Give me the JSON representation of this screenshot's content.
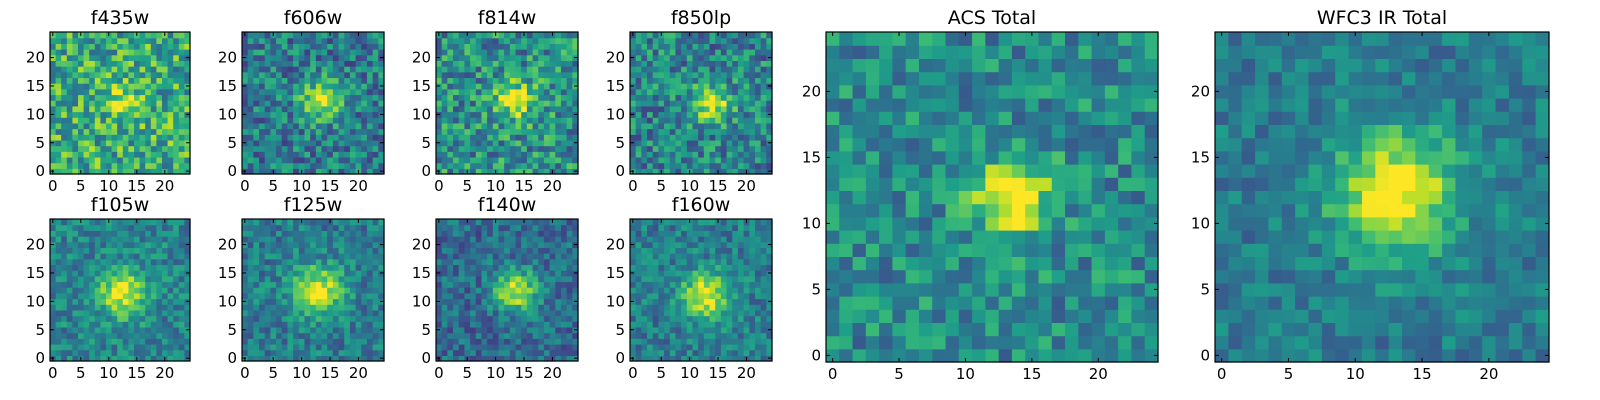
{
  "chart_data": {
    "type": "heatmap",
    "colormap": "viridis",
    "panels": [
      {
        "id": "f435w",
        "title": "f435w",
        "grid": 25,
        "xlim": [
          0,
          24
        ],
        "ylim": [
          0,
          24
        ],
        "xticks": [
          0,
          5,
          10,
          15,
          20
        ],
        "yticks": [
          0,
          5,
          10,
          15,
          20
        ],
        "peak": [
          12.5,
          12.5
        ],
        "sigma": 2.2,
        "amp": 0.3,
        "bg": 0.62,
        "noise": 0.28,
        "seed": 11
      },
      {
        "id": "f606w",
        "title": "f606w",
        "grid": 25,
        "xlim": [
          0,
          24
        ],
        "ylim": [
          0,
          24
        ],
        "xticks": [
          0,
          5,
          10,
          15,
          20
        ],
        "yticks": [
          0,
          5,
          10,
          15,
          20
        ],
        "peak": [
          13.5,
          12.5
        ],
        "sigma": 2.4,
        "amp": 0.55,
        "bg": 0.42,
        "noise": 0.24,
        "seed": 23
      },
      {
        "id": "f814w",
        "title": "f814w",
        "grid": 25,
        "xlim": [
          0,
          24
        ],
        "ylim": [
          0,
          24
        ],
        "xticks": [
          0,
          5,
          10,
          15,
          20
        ],
        "yticks": [
          0,
          5,
          10,
          15,
          20
        ],
        "peak": [
          13.5,
          12.5
        ],
        "sigma": 2.4,
        "amp": 0.45,
        "bg": 0.5,
        "noise": 0.26,
        "seed": 37
      },
      {
        "id": "f850lp",
        "title": "f850lp",
        "grid": 25,
        "xlim": [
          0,
          24
        ],
        "ylim": [
          0,
          24
        ],
        "xticks": [
          0,
          5,
          10,
          15,
          20
        ],
        "yticks": [
          0,
          5,
          10,
          15,
          20
        ],
        "peak": [
          14.0,
          12.0
        ],
        "sigma": 2.2,
        "amp": 0.55,
        "bg": 0.45,
        "noise": 0.25,
        "seed": 41
      },
      {
        "id": "f105w",
        "title": "f105w",
        "grid": 25,
        "xlim": [
          0,
          24
        ],
        "ylim": [
          0,
          24
        ],
        "xticks": [
          0,
          5,
          10,
          15,
          20
        ],
        "yticks": [
          0,
          5,
          10,
          15,
          20
        ],
        "peak": [
          12.5,
          11.5
        ],
        "sigma": 3.0,
        "amp": 0.5,
        "bg": 0.45,
        "noise": 0.17,
        "seed": 53
      },
      {
        "id": "f125w",
        "title": "f125w",
        "grid": 25,
        "xlim": [
          0,
          24
        ],
        "ylim": [
          0,
          24
        ],
        "xticks": [
          0,
          5,
          10,
          15,
          20
        ],
        "yticks": [
          0,
          5,
          10,
          15,
          20
        ],
        "peak": [
          13.0,
          12.0
        ],
        "sigma": 3.0,
        "amp": 0.55,
        "bg": 0.42,
        "noise": 0.17,
        "seed": 67
      },
      {
        "id": "f140w",
        "title": "f140w",
        "grid": 25,
        "xlim": [
          0,
          24
        ],
        "ylim": [
          0,
          24
        ],
        "xticks": [
          0,
          5,
          10,
          15,
          20
        ],
        "yticks": [
          0,
          5,
          10,
          15,
          20
        ],
        "peak": [
          13.5,
          12.0
        ],
        "sigma": 2.6,
        "amp": 0.6,
        "bg": 0.35,
        "noise": 0.17,
        "seed": 79
      },
      {
        "id": "f160w",
        "title": "f160w",
        "grid": 25,
        "xlim": [
          0,
          24
        ],
        "ylim": [
          0,
          24
        ],
        "xticks": [
          0,
          5,
          10,
          15,
          20
        ],
        "yticks": [
          0,
          5,
          10,
          15,
          20
        ],
        "peak": [
          13.0,
          11.0
        ],
        "sigma": 3.0,
        "amp": 0.55,
        "bg": 0.42,
        "noise": 0.17,
        "seed": 83
      },
      {
        "id": "acs-total",
        "title": "ACS Total",
        "grid": 25,
        "xlim": [
          0,
          24
        ],
        "ylim": [
          0,
          24
        ],
        "xticks": [
          0,
          5,
          10,
          15,
          20
        ],
        "yticks": [
          0,
          5,
          10,
          15,
          20
        ],
        "peak": [
          13.5,
          12.0
        ],
        "sigma": 2.0,
        "amp": 0.6,
        "bg": 0.48,
        "noise": 0.2,
        "seed": 97
      },
      {
        "id": "wfc3-ir-total",
        "title": "WFC3 IR Total",
        "grid": 25,
        "xlim": [
          0,
          24
        ],
        "ylim": [
          0,
          24
        ],
        "xticks": [
          0,
          5,
          10,
          15,
          20
        ],
        "yticks": [
          0,
          5,
          10,
          15,
          20
        ],
        "peak": [
          13.0,
          12.5
        ],
        "sigma": 3.2,
        "amp": 0.6,
        "bg": 0.42,
        "noise": 0.14,
        "seed": 101
      }
    ]
  }
}
